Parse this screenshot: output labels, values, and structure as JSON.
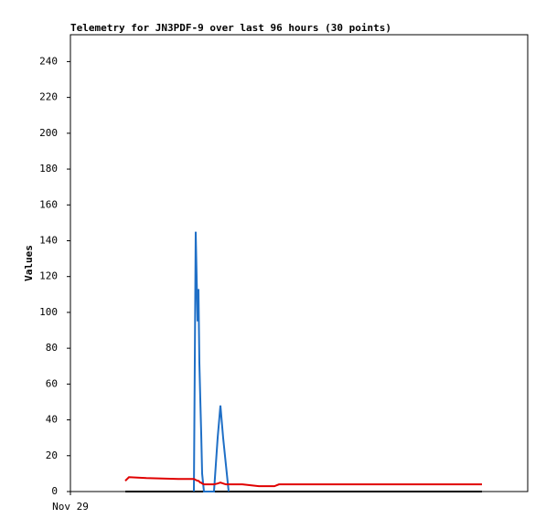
{
  "chart_data": {
    "type": "line",
    "title": "Telemetry for JN3PDF-9 over last 96 hours (30 points)",
    "y_label": "Values",
    "x": [
      11.52,
      12.29,
      15.94,
      22.66,
      25.92,
      26.3,
      26.69,
      26.88,
      27.07,
      27.26,
      27.46,
      27.65,
      28.03,
      30.14,
      30.91,
      31.49,
      32.06,
      32.64,
      33.22,
      36.1,
      39.55,
      42.82,
      43.78,
      50.5,
      58.18,
      65.86,
      73.54,
      79.3,
      83.14,
      86.4
    ],
    "xlim": [
      0,
      96
    ],
    "xticks": [
      {
        "value": 0,
        "label": "Nov 29"
      }
    ],
    "ylim": [
      0,
      255
    ],
    "yticks": [
      0,
      20,
      40,
      60,
      80,
      100,
      120,
      140,
      160,
      180,
      200,
      220,
      240
    ],
    "grid": false,
    "series": [
      {
        "color": "#000000",
        "values": [
          0,
          0,
          0,
          0,
          0,
          0,
          0,
          0,
          0,
          0,
          0,
          0,
          0,
          0,
          0,
          0,
          0,
          0,
          0,
          0,
          0,
          0,
          0,
          0,
          0,
          0,
          0,
          0,
          0,
          0
        ]
      },
      {
        "color": "#1f6fc6",
        "values": [
          null,
          null,
          null,
          null,
          0,
          145,
          95,
          113,
          72,
          52,
          32,
          10,
          0,
          0,
          30,
          48,
          30,
          15,
          0,
          null,
          null,
          null,
          null,
          null,
          null,
          null,
          null,
          null,
          null,
          null
        ]
      },
      {
        "color": "#e00000",
        "values": [
          6,
          8,
          7.5,
          7,
          7,
          6.5,
          6,
          6,
          5.5,
          5,
          5,
          4.5,
          4,
          4,
          4.5,
          5,
          4.5,
          4,
          4,
          4,
          3,
          3,
          4,
          4,
          4,
          4,
          4,
          4,
          4,
          4
        ]
      }
    ]
  }
}
